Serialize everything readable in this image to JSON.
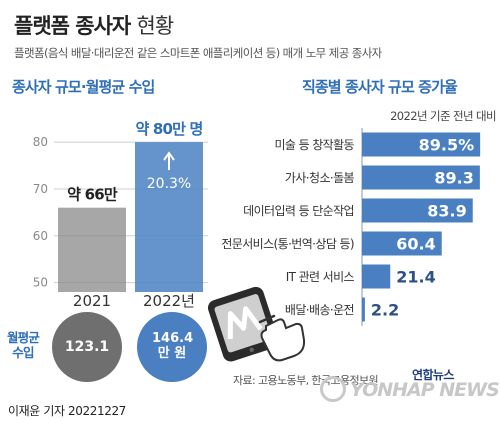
{
  "title": {
    "main": "플랫폼 종사자",
    "suffix": "현황"
  },
  "subtitle": "플랫폼(음식 배달·대리운전 같은 스마트폰 애플리케이션 등) 매개 노무 제공 종사자",
  "left_section": {
    "title": "종사자 규모·월평균 수입",
    "average_income_label": "월평균 수입",
    "income_2021": "123.1",
    "income_2022": "146.4 만 원"
  },
  "right_section": {
    "title": "직종별 종사자 규모 증가율"
  },
  "source": "자료: 고용노동부, 한국고용정보원",
  "logo": {
    "top": "연합뉴스",
    "text": "YONHAP NEWS"
  },
  "credit": "이재윤 기자  20221227",
  "colors": {
    "accent_blue": "#2e6fb7",
    "bar_blue": "#4a80c2",
    "bar_gray": "#8a8a8a"
  },
  "chart_data": [
    {
      "type": "bar",
      "categories": [
        "2021",
        "2022년"
      ],
      "values": [
        66,
        80
      ],
      "value_labels": [
        "약 66만",
        "약 80만 명"
      ],
      "annotation": "20.3%",
      "yticks": [
        50,
        60,
        70,
        80
      ],
      "ylim": [
        48,
        86
      ],
      "grid": true
    },
    {
      "type": "bar",
      "orientation": "horizontal",
      "subtitle": "2022년 기준 전년 대비",
      "categories": [
        "미술 등 창작활동",
        "가사·청소·돌봄",
        "데이터입력 등 단순작업",
        "전문서비스(통·번역·상담 등)",
        "IT 관련 서비스",
        "배달·배송·운전"
      ],
      "values": [
        89.5,
        89.3,
        83.9,
        60.4,
        21.4,
        2.2
      ],
      "value_labels": [
        "89.5%",
        "89.3",
        "83.9",
        "60.4",
        "21.4",
        "2.2"
      ],
      "xlim": [
        0,
        100
      ]
    }
  ]
}
